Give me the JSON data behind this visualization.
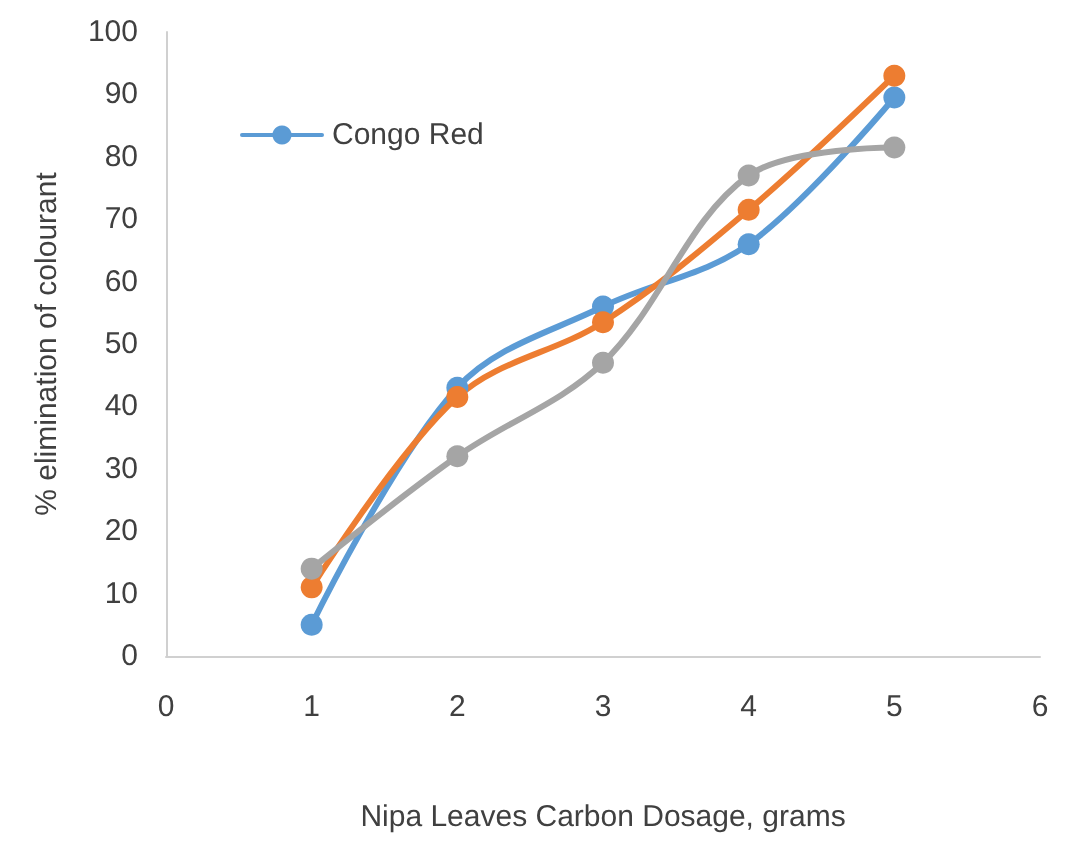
{
  "chart_data": {
    "type": "line",
    "xlabel": "Nipa Leaves Carbon Dosage, grams",
    "ylabel": "% elimination of colourant",
    "x": [
      1,
      2,
      3,
      4,
      5
    ],
    "series": [
      {
        "name": "Congo Red",
        "color": "#5b9bd5",
        "values": [
          5,
          43,
          56,
          66,
          89.5
        ]
      },
      {
        "color": "#ed7d31",
        "values": [
          11,
          41.5,
          53.5,
          71.5,
          93
        ]
      },
      {
        "color": "#a5a5a5",
        "values": [
          14,
          32,
          47,
          77,
          81.5
        ]
      }
    ],
    "xlim": [
      0,
      6
    ],
    "xticks": [
      0,
      1,
      2,
      3,
      4,
      5,
      6
    ],
    "ylim": [
      0,
      100
    ],
    "yticks": [
      0,
      10,
      20,
      30,
      40,
      50,
      60,
      70,
      80,
      90,
      100
    ],
    "grid": false,
    "legend": "top left",
    "marker": "circle",
    "line_style": "solid"
  }
}
